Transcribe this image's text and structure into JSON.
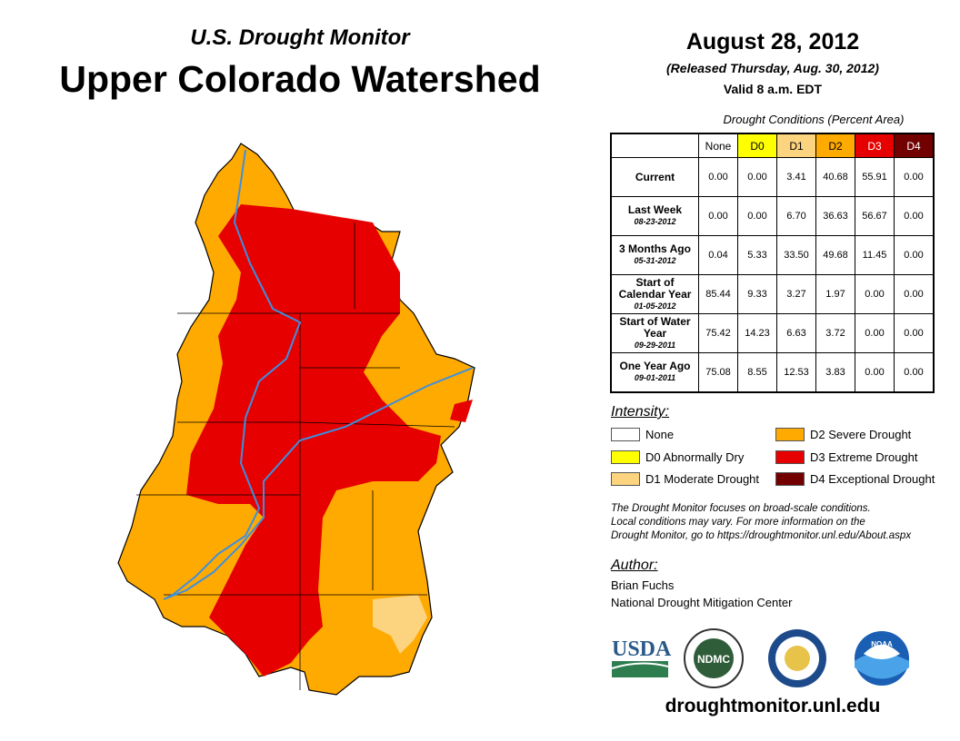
{
  "header": {
    "subtitle": "U.S. Drought Monitor",
    "title": "Upper Colorado Watershed",
    "date": "August 28, 2012",
    "released": "(Released Thursday, Aug. 30, 2012)",
    "valid": "Valid 8 a.m. EDT"
  },
  "table": {
    "caption": "Drought Conditions (Percent Area)",
    "columns": [
      "None",
      "D0",
      "D1",
      "D2",
      "D3",
      "D4"
    ],
    "rows": [
      {
        "label": "Current",
        "date": "",
        "values": [
          "0.00",
          "0.00",
          "3.41",
          "40.68",
          "55.91",
          "0.00"
        ]
      },
      {
        "label": "Last Week",
        "date": "08-23-2012",
        "values": [
          "0.00",
          "0.00",
          "6.70",
          "36.63",
          "56.67",
          "0.00"
        ]
      },
      {
        "label": "3 Months Ago",
        "date": "05-31-2012",
        "values": [
          "0.04",
          "5.33",
          "33.50",
          "49.68",
          "11.45",
          "0.00"
        ]
      },
      {
        "label": "Start of Calendar Year",
        "date": "01-05-2012",
        "values": [
          "85.44",
          "9.33",
          "3.27",
          "1.97",
          "0.00",
          "0.00"
        ]
      },
      {
        "label": "Start of Water Year",
        "date": "09-29-2011",
        "values": [
          "75.42",
          "14.23",
          "6.63",
          "3.72",
          "0.00",
          "0.00"
        ]
      },
      {
        "label": "One Year Ago",
        "date": "09-01-2011",
        "values": [
          "75.08",
          "8.55",
          "12.53",
          "3.83",
          "0.00",
          "0.00"
        ]
      }
    ]
  },
  "colors": {
    "None": "#ffffff",
    "D0": "#ffff00",
    "D1": "#fcd37f",
    "D2": "#ffaa00",
    "D3": "#e60000",
    "D4": "#730000",
    "river": "#3d8fe0"
  },
  "legend": {
    "title": "Intensity:",
    "items": [
      {
        "key": "None",
        "label": "None"
      },
      {
        "key": "D0",
        "label": "D0 Abnormally Dry"
      },
      {
        "key": "D1",
        "label": "D1 Moderate Drought"
      },
      {
        "key": "D2",
        "label": "D2 Severe Drought"
      },
      {
        "key": "D3",
        "label": "D3 Extreme Drought"
      },
      {
        "key": "D4",
        "label": "D4 Exceptional Drought"
      }
    ]
  },
  "note": [
    "The Drought Monitor focuses on broad-scale conditions.",
    "Local conditions may vary. For more information on the",
    "Drought Monitor, go to https://droughtmonitor.unl.edu/About.aspx"
  ],
  "author": {
    "heading": "Author:",
    "name": "Brian Fuchs",
    "org": "National Drought Mitigation Center"
  },
  "logos": [
    "USDA",
    "NDMC",
    "NOAA"
  ],
  "url": "droughtmonitor.unl.edu"
}
